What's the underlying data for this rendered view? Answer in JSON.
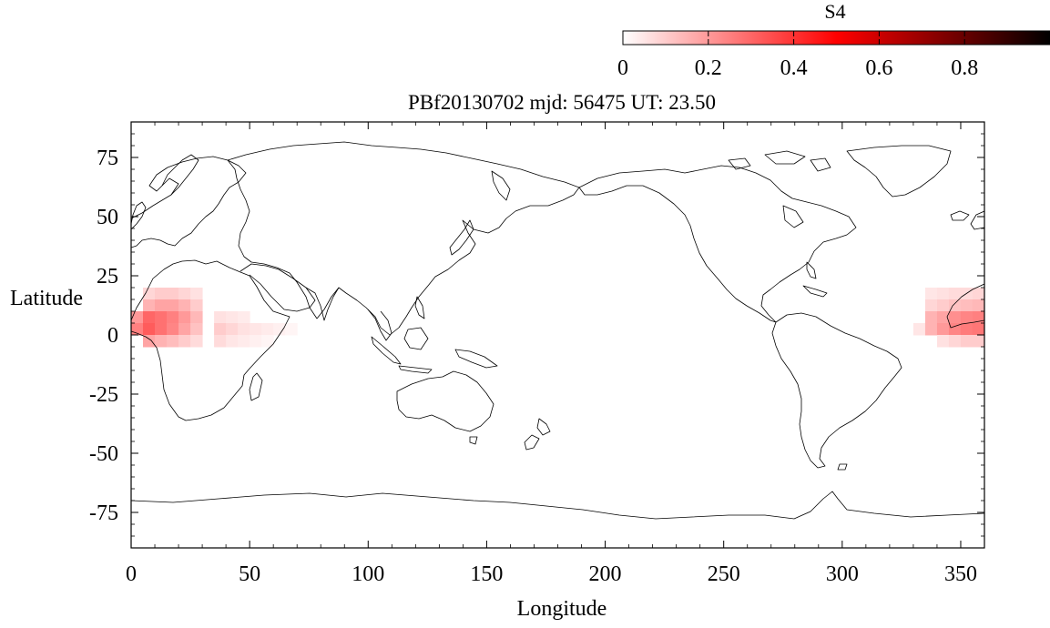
{
  "colorbar": {
    "label": "S4",
    "ticks": [
      "0",
      "0.2",
      "0.4",
      "0.6",
      "0.8"
    ],
    "tick_values": [
      0,
      0.2,
      0.4,
      0.6,
      0.8
    ],
    "range": [
      0,
      1.0
    ],
    "colors": [
      "#ffffff",
      "#ff8080",
      "#ff0000",
      "#800000",
      "#000000"
    ]
  },
  "title": "PBf20130702  mjd: 56475  UT:  23.50",
  "chart_data": {
    "type": "heatmap",
    "title": "PBf20130702  mjd: 56475  UT:  23.50",
    "xlabel": "Longitude",
    "ylabel": "Latitude",
    "xlim": [
      0,
      360
    ],
    "ylim": [
      -90,
      90
    ],
    "x_ticks": [
      0,
      50,
      100,
      150,
      200,
      250,
      300,
      350
    ],
    "y_ticks": [
      75,
      50,
      25,
      0,
      -25,
      -50,
      -75
    ],
    "x_tick_labels": [
      "0",
      "50",
      "100",
      "150",
      "200",
      "250",
      "300",
      "350"
    ],
    "y_tick_labels": [
      "75",
      "50",
      "25",
      "0",
      "-25",
      "-50",
      "-75"
    ],
    "cells": [
      {
        "lon": [
          5,
          10
        ],
        "lat": [
          15,
          20
        ],
        "s4": 0.08
      },
      {
        "lon": [
          10,
          15
        ],
        "lat": [
          15,
          20
        ],
        "s4": 0.1
      },
      {
        "lon": [
          15,
          20
        ],
        "lat": [
          15,
          20
        ],
        "s4": 0.1
      },
      {
        "lon": [
          20,
          25
        ],
        "lat": [
          15,
          20
        ],
        "s4": 0.08
      },
      {
        "lon": [
          25,
          30
        ],
        "lat": [
          15,
          20
        ],
        "s4": 0.06
      },
      {
        "lon": [
          5,
          10
        ],
        "lat": [
          10,
          15
        ],
        "s4": 0.15
      },
      {
        "lon": [
          10,
          15
        ],
        "lat": [
          10,
          15
        ],
        "s4": 0.18
      },
      {
        "lon": [
          15,
          20
        ],
        "lat": [
          10,
          15
        ],
        "s4": 0.18
      },
      {
        "lon": [
          20,
          25
        ],
        "lat": [
          10,
          15
        ],
        "s4": 0.15
      },
      {
        "lon": [
          25,
          30
        ],
        "lat": [
          10,
          15
        ],
        "s4": 0.1
      },
      {
        "lon": [
          0,
          5
        ],
        "lat": [
          5,
          10
        ],
        "s4": 0.2
      },
      {
        "lon": [
          5,
          10
        ],
        "lat": [
          5,
          10
        ],
        "s4": 0.3
      },
      {
        "lon": [
          10,
          15
        ],
        "lat": [
          5,
          10
        ],
        "s4": 0.28
      },
      {
        "lon": [
          15,
          20
        ],
        "lat": [
          5,
          10
        ],
        "s4": 0.25
      },
      {
        "lon": [
          20,
          25
        ],
        "lat": [
          5,
          10
        ],
        "s4": 0.2
      },
      {
        "lon": [
          25,
          30
        ],
        "lat": [
          5,
          10
        ],
        "s4": 0.14
      },
      {
        "lon": [
          0,
          5
        ],
        "lat": [
          0,
          5
        ],
        "s4": 0.25
      },
      {
        "lon": [
          5,
          10
        ],
        "lat": [
          0,
          5
        ],
        "s4": 0.32
      },
      {
        "lon": [
          10,
          15
        ],
        "lat": [
          0,
          5
        ],
        "s4": 0.28
      },
      {
        "lon": [
          15,
          20
        ],
        "lat": [
          0,
          5
        ],
        "s4": 0.24
      },
      {
        "lon": [
          20,
          25
        ],
        "lat": [
          0,
          5
        ],
        "s4": 0.18
      },
      {
        "lon": [
          25,
          30
        ],
        "lat": [
          0,
          5
        ],
        "s4": 0.12
      },
      {
        "lon": [
          5,
          10
        ],
        "lat": [
          -5,
          0
        ],
        "s4": 0.18
      },
      {
        "lon": [
          10,
          15
        ],
        "lat": [
          -5,
          0
        ],
        "s4": 0.15
      },
      {
        "lon": [
          15,
          20
        ],
        "lat": [
          -5,
          0
        ],
        "s4": 0.13
      },
      {
        "lon": [
          20,
          25
        ],
        "lat": [
          -5,
          0
        ],
        "s4": 0.1
      },
      {
        "lon": [
          25,
          30
        ],
        "lat": [
          -5,
          0
        ],
        "s4": 0.07
      },
      {
        "lon": [
          35,
          40
        ],
        "lat": [
          5,
          10
        ],
        "s4": 0.06
      },
      {
        "lon": [
          40,
          45
        ],
        "lat": [
          5,
          10
        ],
        "s4": 0.05
      },
      {
        "lon": [
          45,
          50
        ],
        "lat": [
          5,
          10
        ],
        "s4": 0.04
      },
      {
        "lon": [
          35,
          40
        ],
        "lat": [
          0,
          5
        ],
        "s4": 0.1
      },
      {
        "lon": [
          40,
          45
        ],
        "lat": [
          0,
          5
        ],
        "s4": 0.08
      },
      {
        "lon": [
          45,
          50
        ],
        "lat": [
          0,
          5
        ],
        "s4": 0.06
      },
      {
        "lon": [
          50,
          55
        ],
        "lat": [
          0,
          5
        ],
        "s4": 0.05
      },
      {
        "lon": [
          55,
          60
        ],
        "lat": [
          0,
          5
        ],
        "s4": 0.04
      },
      {
        "lon": [
          60,
          65
        ],
        "lat": [
          0,
          5
        ],
        "s4": 0.03
      },
      {
        "lon": [
          65,
          70
        ],
        "lat": [
          0,
          5
        ],
        "s4": 0.02
      },
      {
        "lon": [
          35,
          40
        ],
        "lat": [
          -5,
          0
        ],
        "s4": 0.07
      },
      {
        "lon": [
          40,
          45
        ],
        "lat": [
          -5,
          0
        ],
        "s4": 0.05
      },
      {
        "lon": [
          45,
          50
        ],
        "lat": [
          -5,
          0
        ],
        "s4": 0.04
      },
      {
        "lon": [
          50,
          55
        ],
        "lat": [
          -5,
          0
        ],
        "s4": 0.03
      },
      {
        "lon": [
          55,
          60
        ],
        "lat": [
          -5,
          0
        ],
        "s4": 0.02
      },
      {
        "lon": [
          335,
          340
        ],
        "lat": [
          15,
          20
        ],
        "s4": 0.05
      },
      {
        "lon": [
          340,
          345
        ],
        "lat": [
          15,
          20
        ],
        "s4": 0.06
      },
      {
        "lon": [
          345,
          350
        ],
        "lat": [
          15,
          20
        ],
        "s4": 0.07
      },
      {
        "lon": [
          350,
          355
        ],
        "lat": [
          15,
          20
        ],
        "s4": 0.07
      },
      {
        "lon": [
          355,
          360
        ],
        "lat": [
          15,
          20
        ],
        "s4": 0.08
      },
      {
        "lon": [
          335,
          340
        ],
        "lat": [
          10,
          15
        ],
        "s4": 0.08
      },
      {
        "lon": [
          340,
          345
        ],
        "lat": [
          10,
          15
        ],
        "s4": 0.1
      },
      {
        "lon": [
          345,
          350
        ],
        "lat": [
          10,
          15
        ],
        "s4": 0.12
      },
      {
        "lon": [
          350,
          355
        ],
        "lat": [
          10,
          15
        ],
        "s4": 0.13
      },
      {
        "lon": [
          355,
          360
        ],
        "lat": [
          10,
          15
        ],
        "s4": 0.14
      },
      {
        "lon": [
          335,
          340
        ],
        "lat": [
          5,
          10
        ],
        "s4": 0.15
      },
      {
        "lon": [
          340,
          345
        ],
        "lat": [
          5,
          10
        ],
        "s4": 0.18
      },
      {
        "lon": [
          345,
          350
        ],
        "lat": [
          5,
          10
        ],
        "s4": 0.22
      },
      {
        "lon": [
          350,
          355
        ],
        "lat": [
          5,
          10
        ],
        "s4": 0.24
      },
      {
        "lon": [
          355,
          360
        ],
        "lat": [
          5,
          10
        ],
        "s4": 0.25
      },
      {
        "lon": [
          330,
          335
        ],
        "lat": [
          0,
          5
        ],
        "s4": 0.05
      },
      {
        "lon": [
          335,
          340
        ],
        "lat": [
          0,
          5
        ],
        "s4": 0.15
      },
      {
        "lon": [
          340,
          345
        ],
        "lat": [
          0,
          5
        ],
        "s4": 0.2
      },
      {
        "lon": [
          345,
          350
        ],
        "lat": [
          0,
          5
        ],
        "s4": 0.24
      },
      {
        "lon": [
          350,
          355
        ],
        "lat": [
          0,
          5
        ],
        "s4": 0.26
      },
      {
        "lon": [
          355,
          360
        ],
        "lat": [
          0,
          5
        ],
        "s4": 0.27
      },
      {
        "lon": [
          340,
          345
        ],
        "lat": [
          -5,
          0
        ],
        "s4": 0.06
      },
      {
        "lon": [
          345,
          350
        ],
        "lat": [
          -5,
          0
        ],
        "s4": 0.08
      },
      {
        "lon": [
          350,
          355
        ],
        "lat": [
          -5,
          0
        ],
        "s4": 0.1
      },
      {
        "lon": [
          355,
          360
        ],
        "lat": [
          -5,
          0
        ],
        "s4": 0.1
      }
    ]
  }
}
